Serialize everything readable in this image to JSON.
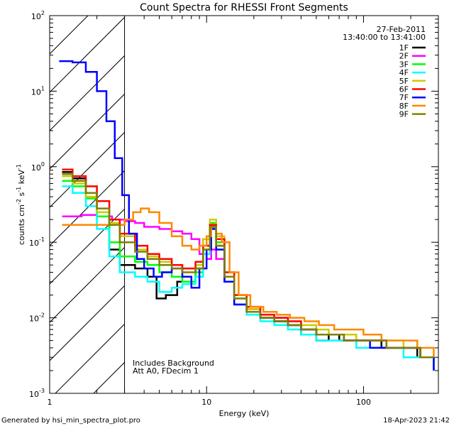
{
  "chart_data": {
    "type": "line",
    "title": "Count Spectra for RHESSI Front Segments",
    "xlabel": "Energy (keV)",
    "ylabel_parts": {
      "base": "counts cm",
      "e1": "-2",
      "mid": " s",
      "e2": "-1",
      "mid2": " keV",
      "e3": "-1"
    },
    "xscale": "log",
    "yscale": "log",
    "xlim": [
      1,
      300
    ],
    "ylim": [
      0.001,
      100
    ],
    "x_ticks": [
      {
        "v": 1,
        "label": "1"
      },
      {
        "v": 10,
        "label": "10"
      },
      {
        "v": 100,
        "label": "100"
      }
    ],
    "y_ticks": [
      {
        "v": 0.001,
        "base": "10",
        "exp": "-3"
      },
      {
        "v": 0.01,
        "base": "10",
        "exp": "-2"
      },
      {
        "v": 0.1,
        "base": "10",
        "exp": "-1"
      },
      {
        "v": 1,
        "base": "10",
        "exp": "0"
      },
      {
        "v": 10,
        "base": "10",
        "exp": "1"
      },
      {
        "v": 100,
        "base": "10",
        "exp": "2"
      }
    ],
    "hatched_region": {
      "x_from": 1,
      "x_to": 3
    },
    "annotations": {
      "date": "27-Feb-2011",
      "time_range": "13:40:00 to 13:41:00",
      "note1": "Includes Background",
      "note2": "Att A0, FDecim 1"
    },
    "series": [
      {
        "name": "1F",
        "color": "#000000",
        "points": [
          [
            1.2,
            0.85
          ],
          [
            1.4,
            0.7
          ],
          [
            1.7,
            0.45
          ],
          [
            2.0,
            0.22
          ],
          [
            2.4,
            0.08
          ],
          [
            2.8,
            0.05
          ],
          [
            3.5,
            0.045
          ],
          [
            4.2,
            0.035
          ],
          [
            4.8,
            0.018
          ],
          [
            5.5,
            0.02
          ],
          [
            6.5,
            0.03
          ],
          [
            7.5,
            0.03
          ],
          [
            8.5,
            0.045
          ],
          [
            9.5,
            0.09
          ],
          [
            10.5,
            0.16
          ],
          [
            11.5,
            0.09
          ],
          [
            13,
            0.03
          ],
          [
            15,
            0.015
          ],
          [
            18,
            0.012
          ],
          [
            22,
            0.01
          ],
          [
            27,
            0.009
          ],
          [
            33,
            0.008
          ],
          [
            40,
            0.006
          ],
          [
            50,
            0.005
          ],
          [
            60,
            0.006
          ],
          [
            70,
            0.005
          ],
          [
            85,
            0.005
          ],
          [
            100,
            0.005
          ],
          [
            130,
            0.004
          ],
          [
            170,
            0.004
          ],
          [
            220,
            0.003
          ],
          [
            280,
            0.002
          ]
        ]
      },
      {
        "name": "2F",
        "color": "#ff00ff",
        "points": [
          [
            1.2,
            0.22
          ],
          [
            1.6,
            0.23
          ],
          [
            2.0,
            0.22
          ],
          [
            2.5,
            0.2
          ],
          [
            3.0,
            0.19
          ],
          [
            3.5,
            0.18
          ],
          [
            4.0,
            0.16
          ],
          [
            5.0,
            0.15
          ],
          [
            6.0,
            0.14
          ],
          [
            7.0,
            0.13
          ],
          [
            8.0,
            0.11
          ],
          [
            9.0,
            0.07
          ],
          [
            10.0,
            0.06
          ],
          [
            10.7,
            0.08
          ],
          [
            11.5,
            0.06
          ],
          [
            13,
            0.035
          ],
          [
            15,
            0.02
          ],
          [
            18,
            0.013
          ],
          [
            22,
            0.011
          ],
          [
            27,
            0.01
          ],
          [
            33,
            0.008
          ],
          [
            40,
            0.007
          ],
          [
            50,
            0.006
          ],
          [
            60,
            0.006
          ],
          [
            75,
            0.005
          ],
          [
            90,
            0.005
          ],
          [
            110,
            0.005
          ],
          [
            140,
            0.004
          ],
          [
            180,
            0.004
          ],
          [
            230,
            0.003
          ],
          [
            280,
            0.003
          ]
        ]
      },
      {
        "name": "3F",
        "color": "#00ff00",
        "points": [
          [
            1.2,
            0.65
          ],
          [
            1.4,
            0.55
          ],
          [
            1.7,
            0.38
          ],
          [
            2.0,
            0.22
          ],
          [
            2.4,
            0.1
          ],
          [
            2.8,
            0.065
          ],
          [
            3.5,
            0.055
          ],
          [
            4.2,
            0.05
          ],
          [
            5.0,
            0.04
          ],
          [
            6.0,
            0.035
          ],
          [
            7.0,
            0.03
          ],
          [
            8.5,
            0.04
          ],
          [
            9.5,
            0.08
          ],
          [
            10.5,
            0.18
          ],
          [
            11.5,
            0.1
          ],
          [
            13,
            0.035
          ],
          [
            15,
            0.018
          ],
          [
            18,
            0.012
          ],
          [
            22,
            0.01
          ],
          [
            27,
            0.009
          ],
          [
            33,
            0.008
          ],
          [
            40,
            0.007
          ],
          [
            50,
            0.006
          ],
          [
            60,
            0.006
          ],
          [
            75,
            0.005
          ],
          [
            90,
            0.005
          ],
          [
            110,
            0.005
          ],
          [
            140,
            0.004
          ],
          [
            180,
            0.004
          ],
          [
            230,
            0.003
          ],
          [
            280,
            0.002
          ]
        ]
      },
      {
        "name": "4F",
        "color": "#00ffff",
        "points": [
          [
            1.2,
            0.55
          ],
          [
            1.4,
            0.45
          ],
          [
            1.7,
            0.3
          ],
          [
            2.0,
            0.15
          ],
          [
            2.4,
            0.065
          ],
          [
            2.8,
            0.04
          ],
          [
            3.5,
            0.035
          ],
          [
            4.2,
            0.03
          ],
          [
            5.0,
            0.022
          ],
          [
            6.0,
            0.025
          ],
          [
            7.0,
            0.028
          ],
          [
            8.5,
            0.035
          ],
          [
            9.5,
            0.07
          ],
          [
            10.5,
            0.15
          ],
          [
            11.5,
            0.08
          ],
          [
            13,
            0.03
          ],
          [
            15,
            0.015
          ],
          [
            18,
            0.011
          ],
          [
            22,
            0.009
          ],
          [
            27,
            0.008
          ],
          [
            33,
            0.007
          ],
          [
            40,
            0.006
          ],
          [
            50,
            0.005
          ],
          [
            60,
            0.005
          ],
          [
            75,
            0.005
          ],
          [
            90,
            0.004
          ],
          [
            110,
            0.004
          ],
          [
            140,
            0.004
          ],
          [
            180,
            0.003
          ],
          [
            230,
            0.003
          ],
          [
            280,
            0.002
          ]
        ]
      },
      {
        "name": "5F",
        "color": "#cccc00",
        "points": [
          [
            1.2,
            0.75
          ],
          [
            1.4,
            0.6
          ],
          [
            1.7,
            0.4
          ],
          [
            2.0,
            0.25
          ],
          [
            2.4,
            0.18
          ],
          [
            2.8,
            0.12
          ],
          [
            3.5,
            0.08
          ],
          [
            4.2,
            0.065
          ],
          [
            5.0,
            0.055
          ],
          [
            6.0,
            0.05
          ],
          [
            7.0,
            0.045
          ],
          [
            8.5,
            0.05
          ],
          [
            9.5,
            0.11
          ],
          [
            10.5,
            0.2
          ],
          [
            11.5,
            0.12
          ],
          [
            13,
            0.04
          ],
          [
            15,
            0.02
          ],
          [
            18,
            0.013
          ],
          [
            22,
            0.011
          ],
          [
            27,
            0.01
          ],
          [
            33,
            0.009
          ],
          [
            40,
            0.008
          ],
          [
            50,
            0.007
          ],
          [
            60,
            0.006
          ],
          [
            75,
            0.006
          ],
          [
            90,
            0.005
          ],
          [
            110,
            0.005
          ],
          [
            140,
            0.005
          ],
          [
            180,
            0.004
          ],
          [
            230,
            0.003
          ],
          [
            280,
            0.003
          ]
        ]
      },
      {
        "name": "6F",
        "color": "#ff0000",
        "points": [
          [
            1.2,
            0.92
          ],
          [
            1.4,
            0.75
          ],
          [
            1.7,
            0.55
          ],
          [
            2.0,
            0.35
          ],
          [
            2.4,
            0.2
          ],
          [
            2.8,
            0.13
          ],
          [
            3.5,
            0.09
          ],
          [
            4.2,
            0.07
          ],
          [
            5.0,
            0.06
          ],
          [
            6.0,
            0.05
          ],
          [
            7.0,
            0.045
          ],
          [
            8.5,
            0.055
          ],
          [
            9.5,
            0.09
          ],
          [
            10.5,
            0.17
          ],
          [
            11.5,
            0.11
          ],
          [
            13,
            0.04
          ],
          [
            15,
            0.02
          ],
          [
            18,
            0.014
          ],
          [
            22,
            0.011
          ],
          [
            27,
            0.01
          ],
          [
            33,
            0.009
          ],
          [
            40,
            0.007
          ],
          [
            50,
            0.006
          ],
          [
            60,
            0.006
          ],
          [
            75,
            0.005
          ],
          [
            90,
            0.005
          ],
          [
            110,
            0.005
          ],
          [
            140,
            0.004
          ],
          [
            180,
            0.004
          ],
          [
            230,
            0.003
          ],
          [
            280,
            0.003
          ]
        ]
      },
      {
        "name": "7F",
        "color": "#0000ff",
        "points": [
          [
            1.15,
            25
          ],
          [
            1.4,
            24
          ],
          [
            1.7,
            18
          ],
          [
            2.0,
            10
          ],
          [
            2.3,
            4
          ],
          [
            2.6,
            1.3
          ],
          [
            2.9,
            0.42
          ],
          [
            3.2,
            0.13
          ],
          [
            3.6,
            0.06
          ],
          [
            4.0,
            0.045
          ],
          [
            4.6,
            0.035
          ],
          [
            5.2,
            0.04
          ],
          [
            6.0,
            0.045
          ],
          [
            7.0,
            0.035
          ],
          [
            8.0,
            0.025
          ],
          [
            9.0,
            0.045
          ],
          [
            10.0,
            0.08
          ],
          [
            10.7,
            0.15
          ],
          [
            11.5,
            0.08
          ],
          [
            13,
            0.03
          ],
          [
            15,
            0.015
          ],
          [
            18,
            0.012
          ],
          [
            22,
            0.01
          ],
          [
            27,
            0.009
          ],
          [
            33,
            0.008
          ],
          [
            40,
            0.007
          ],
          [
            50,
            0.006
          ],
          [
            60,
            0.006
          ],
          [
            75,
            0.005
          ],
          [
            90,
            0.005
          ],
          [
            110,
            0.004
          ],
          [
            140,
            0.004
          ],
          [
            180,
            0.004
          ],
          [
            230,
            0.003
          ],
          [
            280,
            0.002
          ]
        ]
      },
      {
        "name": "8F",
        "color": "#ff8800",
        "points": [
          [
            1.2,
            0.17
          ],
          [
            1.6,
            0.17
          ],
          [
            2.0,
            0.17
          ],
          [
            2.5,
            0.17
          ],
          [
            3.0,
            0.2
          ],
          [
            3.4,
            0.25
          ],
          [
            3.8,
            0.28
          ],
          [
            4.3,
            0.25
          ],
          [
            5.0,
            0.18
          ],
          [
            6.0,
            0.12
          ],
          [
            7.0,
            0.09
          ],
          [
            8.0,
            0.08
          ],
          [
            9.0,
            0.09
          ],
          [
            10.0,
            0.12
          ],
          [
            10.7,
            0.16
          ],
          [
            11.5,
            0.13
          ],
          [
            12.5,
            0.1
          ],
          [
            14,
            0.04
          ],
          [
            16,
            0.02
          ],
          [
            19,
            0.014
          ],
          [
            23,
            0.012
          ],
          [
            28,
            0.011
          ],
          [
            34,
            0.01
          ],
          [
            42,
            0.009
          ],
          [
            52,
            0.008
          ],
          [
            65,
            0.007
          ],
          [
            80,
            0.007
          ],
          [
            100,
            0.006
          ],
          [
            130,
            0.005
          ],
          [
            170,
            0.005
          ],
          [
            220,
            0.004
          ],
          [
            280,
            0.003
          ]
        ]
      },
      {
        "name": "9F",
        "color": "#808000",
        "points": [
          [
            1.2,
            0.8
          ],
          [
            1.4,
            0.65
          ],
          [
            1.7,
            0.45
          ],
          [
            2.0,
            0.28
          ],
          [
            2.4,
            0.17
          ],
          [
            2.8,
            0.1
          ],
          [
            3.5,
            0.075
          ],
          [
            4.2,
            0.06
          ],
          [
            5.0,
            0.05
          ],
          [
            6.0,
            0.045
          ],
          [
            7.0,
            0.04
          ],
          [
            8.5,
            0.045
          ],
          [
            9.5,
            0.08
          ],
          [
            10.5,
            0.16
          ],
          [
            11.5,
            0.09
          ],
          [
            13,
            0.035
          ],
          [
            15,
            0.018
          ],
          [
            18,
            0.012
          ],
          [
            22,
            0.01
          ],
          [
            27,
            0.009
          ],
          [
            33,
            0.008
          ],
          [
            40,
            0.007
          ],
          [
            50,
            0.006
          ],
          [
            60,
            0.006
          ],
          [
            75,
            0.005
          ],
          [
            90,
            0.005
          ],
          [
            110,
            0.005
          ],
          [
            140,
            0.004
          ],
          [
            180,
            0.004
          ],
          [
            230,
            0.003
          ],
          [
            280,
            0.003
          ]
        ]
      }
    ]
  },
  "footer": {
    "generated_by": "Generated by hsi_min_spectra_plot.pro",
    "timestamp": "18-Apr-2023 21:42"
  }
}
